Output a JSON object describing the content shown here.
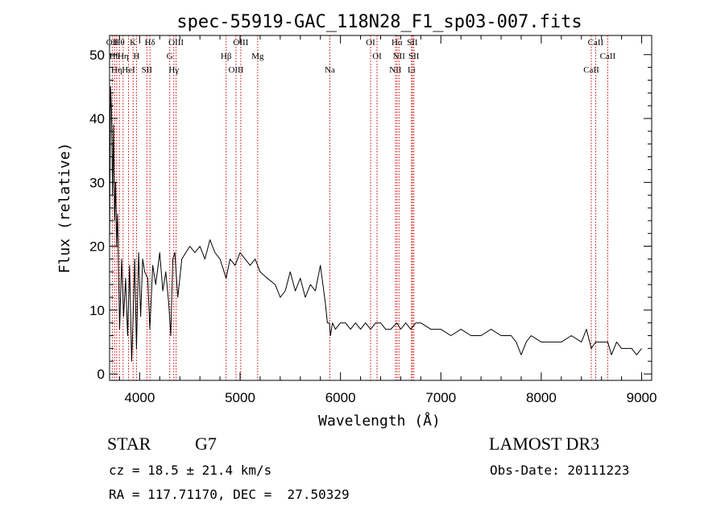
{
  "chart_data": {
    "type": "line",
    "title": "spec-55919-GAC_118N28_F1_sp03-007.fits",
    "xlabel": "Wavelength (Å)",
    "ylabel": "Flux (relative)",
    "xlim": [
      3700,
      9100
    ],
    "ylim": [
      -1,
      53
    ],
    "xticks": [
      4000,
      5000,
      6000,
      7000,
      8000,
      9000
    ],
    "yticks": [
      0,
      10,
      20,
      30,
      40,
      50
    ],
    "grid": false,
    "series": [
      {
        "name": "spectrum",
        "x": [
          3700,
          3710,
          3720,
          3730,
          3740,
          3750,
          3760,
          3770,
          3780,
          3790,
          3800,
          3820,
          3840,
          3860,
          3880,
          3900,
          3920,
          3933,
          3950,
          3968,
          3990,
          4010,
          4030,
          4050,
          4080,
          4101,
          4130,
          4160,
          4200,
          4230,
          4260,
          4290,
          4310,
          4330,
          4350,
          4380,
          4420,
          4460,
          4500,
          4550,
          4600,
          4650,
          4700,
          4750,
          4800,
          4861,
          4900,
          4950,
          5000,
          5050,
          5100,
          5150,
          5200,
          5270,
          5350,
          5400,
          5450,
          5500,
          5550,
          5600,
          5650,
          5700,
          5750,
          5800,
          5850,
          5870,
          5890,
          5900,
          5920,
          5950,
          6000,
          6050,
          6100,
          6150,
          6200,
          6250,
          6300,
          6350,
          6400,
          6450,
          6500,
          6563,
          6600,
          6650,
          6700,
          6750,
          6800,
          6900,
          7000,
          7100,
          7200,
          7300,
          7400,
          7500,
          7600,
          7700,
          7750,
          7800,
          7850,
          7900,
          8000,
          8100,
          8200,
          8300,
          8400,
          8450,
          8498,
          8542,
          8600,
          8662,
          8700,
          8750,
          8800,
          8850,
          8900,
          8950,
          9000
        ],
        "y": [
          20,
          45,
          41,
          28,
          39,
          24,
          30,
          20,
          25,
          16,
          7,
          18,
          9,
          15,
          6,
          17,
          2,
          8,
          18,
          4,
          19,
          9,
          18,
          16,
          15,
          7,
          17,
          14,
          19,
          13,
          16,
          11,
          6,
          18,
          19,
          12,
          18,
          19,
          20,
          19,
          20,
          18,
          21,
          19,
          18,
          15,
          18,
          17,
          19,
          18,
          17,
          18,
          16,
          15,
          14,
          12,
          13,
          16,
          13,
          15,
          12,
          14,
          13,
          17,
          11,
          8,
          8,
          6,
          8,
          7,
          8,
          8,
          7,
          8,
          7,
          8,
          7,
          8,
          8,
          7,
          7,
          8,
          7,
          8,
          7,
          8,
          8,
          7,
          7,
          6,
          7,
          6,
          6,
          7,
          6,
          6,
          5,
          3,
          5,
          6,
          5,
          5,
          5,
          6,
          5,
          7,
          4,
          5,
          5,
          5,
          3,
          5,
          4,
          4,
          4,
          3,
          4
        ]
      }
    ],
    "line_markers": [
      {
        "wavelength": 3727,
        "label": "OII"
      },
      {
        "wavelength": 3750,
        "label": "Hθ"
      },
      {
        "wavelength": 3771,
        "label": "Hη"
      },
      {
        "wavelength": 3798,
        "label": "Hθ"
      },
      {
        "wavelength": 3835,
        "label": "Hη"
      },
      {
        "wavelength": 3889,
        "label": "HeI"
      },
      {
        "wavelength": 3934,
        "label": "K"
      },
      {
        "wavelength": 3968,
        "label": "H"
      },
      {
        "wavelength": 4072,
        "label": "SII"
      },
      {
        "wavelength": 4102,
        "label": "Hδ"
      },
      {
        "wavelength": 4300,
        "label": "G"
      },
      {
        "wavelength": 4340,
        "label": "Hγ"
      },
      {
        "wavelength": 4363,
        "label": "OIII"
      },
      {
        "wavelength": 4861,
        "label": "Hβ"
      },
      {
        "wavelength": 4959,
        "label": "OIII"
      },
      {
        "wavelength": 5007,
        "label": "OIII"
      },
      {
        "wavelength": 5175,
        "label": "Mg"
      },
      {
        "wavelength": 5894,
        "label": "Na"
      },
      {
        "wavelength": 6300,
        "label": "OI"
      },
      {
        "wavelength": 6364,
        "label": "OI"
      },
      {
        "wavelength": 6548,
        "label": "NII"
      },
      {
        "wavelength": 6563,
        "label": "Hα"
      },
      {
        "wavelength": 6583,
        "label": "NII"
      },
      {
        "wavelength": 6708,
        "label": "Li"
      },
      {
        "wavelength": 6716,
        "label": "SII"
      },
      {
        "wavelength": 6731,
        "label": "SII"
      },
      {
        "wavelength": 8498,
        "label": "CaII"
      },
      {
        "wavelength": 8542,
        "label": "CaII"
      },
      {
        "wavelength": 8662,
        "label": "CaII"
      }
    ]
  },
  "footer": {
    "object_type": "STAR",
    "subclass": "G7",
    "cz": "cz = 18.5 ± 21.4 km/s",
    "coords": "RA = 117.71170, DEC =  27.50329",
    "survey": "LAMOST DR3",
    "obs_date": "Obs-Date: 20111223"
  },
  "colors": {
    "line_marker": "#cc0000",
    "spectrum": "#000000"
  }
}
